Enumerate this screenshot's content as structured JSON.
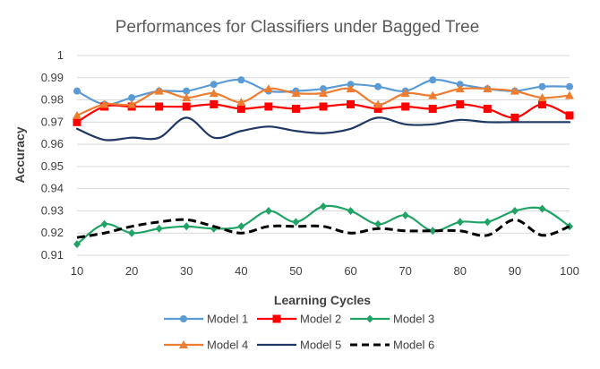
{
  "chart_data": {
    "type": "line",
    "title": "Performances for Classifiers under Bagged Tree",
    "xlabel": "Learning Cycles",
    "ylabel": "Accuracy",
    "xlim": [
      10,
      100
    ],
    "ylim": [
      0.91,
      1
    ],
    "x": [
      10,
      15,
      20,
      25,
      30,
      35,
      40,
      45,
      50,
      55,
      60,
      65,
      70,
      75,
      80,
      85,
      90,
      95,
      100
    ],
    "x_ticks": [
      "10",
      "20",
      "30",
      "40",
      "50",
      "60",
      "70",
      "80",
      "90",
      "100"
    ],
    "y_ticks": [
      "0.91",
      "0.92",
      "0.93",
      "0.94",
      "0.95",
      "0.96",
      "0.97",
      "0.98",
      "0.99",
      "1"
    ],
    "grid": true,
    "legend_position": "bottom",
    "series": [
      {
        "name": "Model 1",
        "color": "#5b9bd5",
        "marker": "circle",
        "dash": "solid",
        "values": [
          0.984,
          0.978,
          0.981,
          0.984,
          0.984,
          0.987,
          0.989,
          0.984,
          0.984,
          0.985,
          0.987,
          0.986,
          0.984,
          0.989,
          0.987,
          0.985,
          0.984,
          0.986,
          0.986
        ]
      },
      {
        "name": "Model 2",
        "color": "#ff0000",
        "marker": "square",
        "dash": "solid",
        "values": [
          0.97,
          0.977,
          0.977,
          0.977,
          0.977,
          0.978,
          0.976,
          0.977,
          0.976,
          0.977,
          0.978,
          0.976,
          0.977,
          0.976,
          0.978,
          0.976,
          0.972,
          0.978,
          0.973
        ]
      },
      {
        "name": "Model 3",
        "color": "#21a366",
        "marker": "diamond",
        "dash": "solid",
        "values": [
          0.915,
          0.924,
          0.92,
          0.922,
          0.923,
          0.922,
          0.923,
          0.93,
          0.925,
          0.932,
          0.93,
          0.924,
          0.928,
          0.921,
          0.925,
          0.925,
          0.93,
          0.931,
          0.923
        ]
      },
      {
        "name": "Model 4",
        "color": "#ed7d31",
        "marker": "triangle",
        "dash": "solid",
        "values": [
          0.973,
          0.978,
          0.978,
          0.984,
          0.981,
          0.983,
          0.979,
          0.985,
          0.983,
          0.983,
          0.985,
          0.978,
          0.983,
          0.982,
          0.985,
          0.985,
          0.984,
          0.981,
          0.982
        ]
      },
      {
        "name": "Model 5",
        "color": "#1f3864",
        "marker": "none",
        "dash": "solid",
        "values": [
          0.967,
          0.962,
          0.963,
          0.963,
          0.972,
          0.963,
          0.966,
          0.968,
          0.966,
          0.965,
          0.967,
          0.972,
          0.969,
          0.969,
          0.971,
          0.97,
          0.97,
          0.97,
          0.97
        ]
      },
      {
        "name": "Model 6",
        "color": "#000000",
        "marker": "none",
        "dash": "dashed",
        "values": [
          0.918,
          0.92,
          0.923,
          0.925,
          0.926,
          0.923,
          0.92,
          0.923,
          0.923,
          0.923,
          0.92,
          0.922,
          0.921,
          0.921,
          0.921,
          0.919,
          0.926,
          0.919,
          0.923
        ]
      }
    ]
  }
}
